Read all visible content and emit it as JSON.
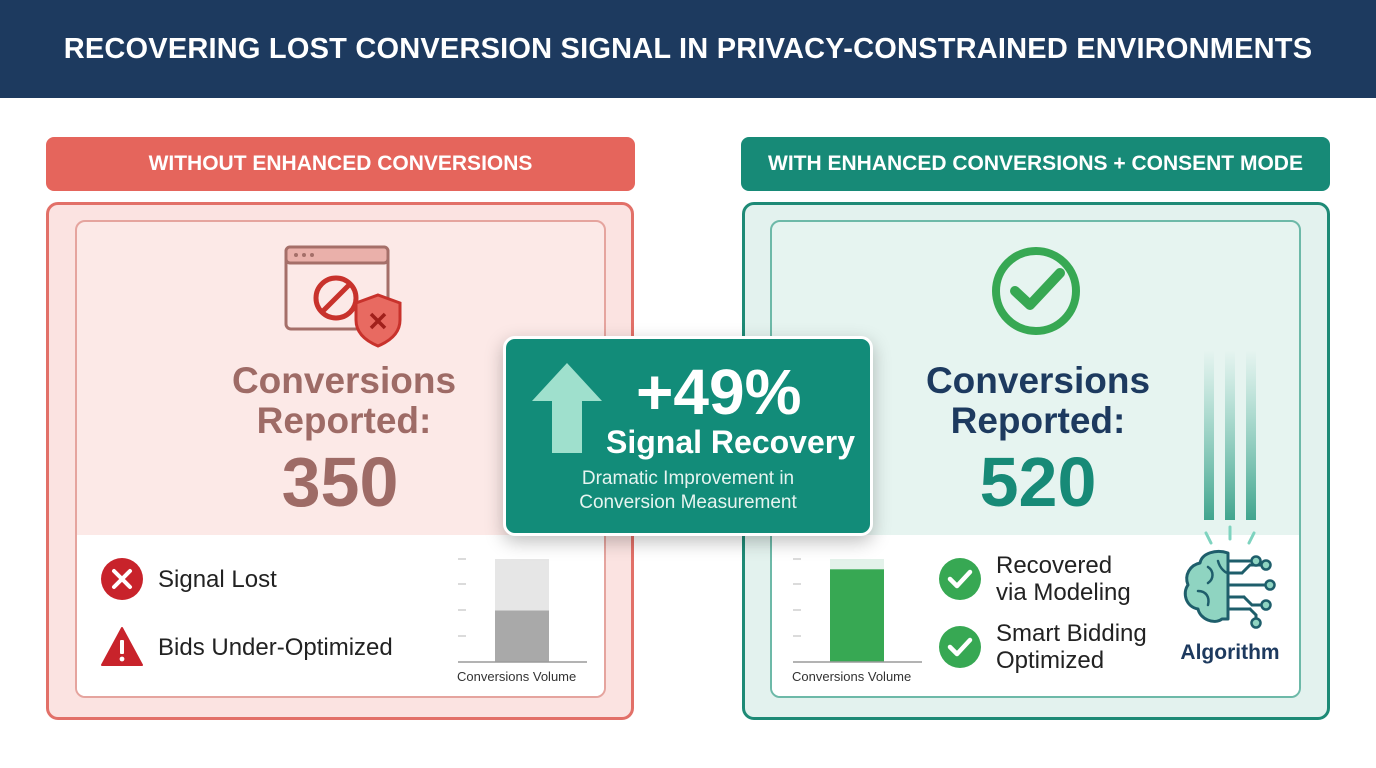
{
  "title": "RECOVERING LOST CONVERSION SIGNAL IN PRIVACY-CONSTRAINED ENVIRONMENTS",
  "left_panel": {
    "header": "WITHOUT ENHANCED CONVERSIONS",
    "conversions_label_line1": "Conversions",
    "conversions_label_line2": "Reported:",
    "conversions_value": "350",
    "bullets": [
      "Signal Lost",
      "Bids Under-Optimized"
    ],
    "chart_axis_label": "Conversions Volume",
    "chart_fill_fraction": 0.5
  },
  "center": {
    "percent": "+49%",
    "subtitle": "Signal Recovery",
    "desc_line1": "Dramatic Improvement in",
    "desc_line2": "Conversion Measurement"
  },
  "right_panel": {
    "header": "WITH ENHANCED CONVERSIONS + CONSENT MODE",
    "conversions_label_line1": "Conversions",
    "conversions_label_line2": "Reported:",
    "conversions_value": "520",
    "bullets": [
      {
        "line1": "Recovered",
        "line2": "via Modeling"
      },
      {
        "line1": "Smart Bidding",
        "line2": "Optimized"
      }
    ],
    "chart_axis_label": "Conversions Volume",
    "chart_fill_fraction": 0.9,
    "algorithm_label": "Algorithm"
  },
  "colors": {
    "navy": "#1d3a5f",
    "red": "#e5655c",
    "teal": "#178a77",
    "green": "#3aa854"
  }
}
